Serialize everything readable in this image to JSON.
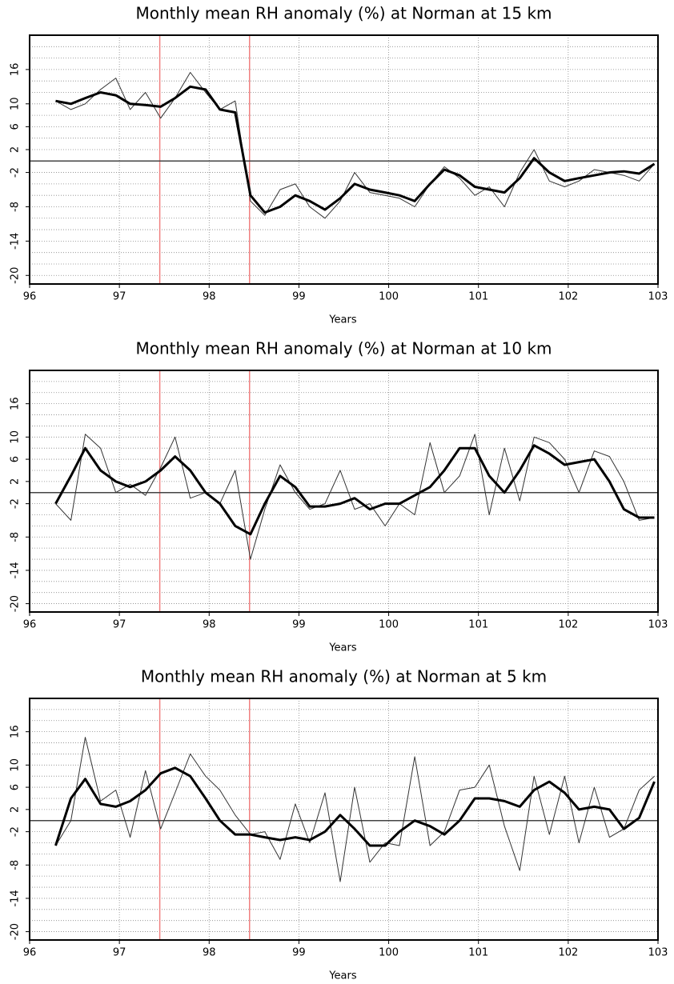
{
  "chart_data": [
    {
      "type": "line",
      "title": "Monthly mean RH anomaly (%) at Norman at 15 km",
      "xlabel": "Years",
      "x": [
        96.29,
        96.46,
        96.62,
        96.79,
        96.96,
        97.12,
        97.29,
        97.46,
        97.62,
        97.79,
        97.96,
        98.12,
        98.29,
        98.46,
        98.62,
        98.79,
        98.96,
        99.12,
        99.29,
        99.46,
        99.62,
        99.79,
        99.96,
        100.12,
        100.29,
        100.46,
        100.62,
        100.79,
        100.96,
        101.12,
        101.29,
        101.46,
        101.62,
        101.79,
        101.96,
        102.12,
        102.29,
        102.46,
        102.62,
        102.79,
        102.96
      ],
      "series": [
        {
          "color": "#333333",
          "values": [
            10.5,
            9,
            10,
            12.5,
            14.5,
            9,
            12,
            7.5,
            11,
            15.5,
            12,
            9,
            10.5,
            -7,
            -9.5,
            -5,
            -4,
            -8,
            -10,
            -7,
            -2,
            -5.5,
            -6,
            -6.5,
            -8,
            -4,
            -1,
            -3,
            -6,
            -4.5,
            -8,
            -2,
            2,
            -3.5,
            -4.5,
            -3.5,
            -1.5,
            -2,
            -2.5,
            -3.5,
            -0.5
          ]
        },
        {
          "color": "#000000",
          "values": [
            10.5,
            10,
            11,
            12,
            11.5,
            10,
            9.8,
            9.5,
            11,
            13,
            12.5,
            9,
            8.5,
            -6,
            -9,
            -8,
            -6,
            -7,
            -8.5,
            -6.5,
            -4,
            -5,
            -5.5,
            -6,
            -7,
            -4,
            -1.5,
            -2.5,
            -4.5,
            -5,
            -5.5,
            -3,
            0.5,
            -2,
            -3.5,
            -3,
            -2.5,
            -2,
            -1.8,
            -2.2,
            -0.5
          ]
        }
      ],
      "xlim": [
        96,
        103
      ],
      "xticks": [
        96,
        97,
        98,
        99,
        100,
        101,
        102,
        103
      ],
      "ylim": [
        -21.5,
        22
      ],
      "yticks": [
        -20,
        -14,
        -8,
        -2,
        2,
        6,
        10,
        16
      ],
      "ygrid": [
        -20,
        -18,
        -16,
        -14,
        -12,
        -10,
        -8,
        -6,
        -4,
        -2,
        2,
        4,
        6,
        8,
        10,
        12,
        14,
        16,
        18,
        20
      ],
      "grid": true,
      "vlines": [
        97.45,
        98.45
      ],
      "vline_color": "#f08080"
    },
    {
      "type": "line",
      "title": "Monthly mean RH anomaly (%) at Norman at 10 km",
      "xlabel": "Years",
      "x": [
        96.29,
        96.46,
        96.62,
        96.79,
        96.96,
        97.12,
        97.29,
        97.46,
        97.62,
        97.79,
        97.96,
        98.12,
        98.29,
        98.46,
        98.62,
        98.79,
        98.96,
        99.12,
        99.29,
        99.46,
        99.62,
        99.79,
        99.96,
        100.12,
        100.29,
        100.46,
        100.62,
        100.79,
        100.96,
        101.12,
        101.29,
        101.46,
        101.62,
        101.79,
        101.96,
        102.12,
        102.29,
        102.46,
        102.62,
        102.79,
        102.96
      ],
      "series": [
        {
          "color": "#333333",
          "values": [
            -2,
            -5,
            10.5,
            8,
            0,
            1.5,
            -0.5,
            4.5,
            10,
            -1,
            0,
            -2,
            4,
            -12,
            -3,
            5,
            0,
            -3,
            -2,
            4,
            -3,
            -2,
            -6,
            -2,
            -4,
            9,
            0,
            3,
            10.5,
            -4,
            8,
            -1.5,
            10,
            9,
            6,
            0,
            7.5,
            6.5,
            2,
            -5,
            -4.5
          ]
        },
        {
          "color": "#000000",
          "values": [
            -2,
            3,
            8,
            4,
            2,
            1,
            2,
            4,
            6.5,
            4,
            0,
            -2,
            -6,
            -7.5,
            -2,
            3,
            1,
            -2.5,
            -2.5,
            -2,
            -1,
            -3,
            -2,
            -2,
            -0.5,
            1,
            4,
            8,
            8,
            3,
            0,
            4,
            8.5,
            7,
            5,
            5.5,
            6,
            2,
            -3,
            -4.5,
            -4.5
          ]
        }
      ],
      "xlim": [
        96,
        103
      ],
      "xticks": [
        96,
        97,
        98,
        99,
        100,
        101,
        102,
        103
      ],
      "ylim": [
        -21.5,
        22
      ],
      "yticks": [
        -20,
        -14,
        -8,
        -2,
        2,
        6,
        10,
        16
      ],
      "ygrid": [
        -20,
        -18,
        -16,
        -14,
        -12,
        -10,
        -8,
        -6,
        -4,
        -2,
        2,
        4,
        6,
        8,
        10,
        12,
        14,
        16,
        18,
        20
      ],
      "grid": true,
      "vlines": [
        97.45,
        98.45
      ],
      "vline_color": "#f08080"
    },
    {
      "type": "line",
      "title": "Monthly mean RH anomaly (%) at Norman at 5 km",
      "xlabel": "Years",
      "x": [
        96.29,
        96.46,
        96.62,
        96.79,
        96.96,
        97.12,
        97.29,
        97.46,
        97.62,
        97.79,
        97.96,
        98.12,
        98.29,
        98.46,
        98.62,
        98.79,
        98.96,
        99.12,
        99.29,
        99.46,
        99.62,
        99.79,
        99.96,
        100.12,
        100.29,
        100.46,
        100.62,
        100.79,
        100.96,
        101.12,
        101.29,
        101.46,
        101.62,
        101.79,
        101.96,
        102.12,
        102.29,
        102.46,
        102.62,
        102.79,
        102.96
      ],
      "series": [
        {
          "color": "#333333",
          "values": [
            -4.5,
            0,
            15,
            3.5,
            5.5,
            -3,
            9,
            -1.5,
            5,
            12,
            8,
            5.5,
            1,
            -2.5,
            -2,
            -7,
            3,
            -4,
            5,
            -11,
            6,
            -7.5,
            -4,
            -4.5,
            11.5,
            -4.5,
            -2,
            5.5,
            6,
            10,
            -1,
            -9,
            8,
            -2.5,
            8,
            -4,
            6,
            -3,
            -1.5,
            5.5,
            8
          ]
        },
        {
          "color": "#000000",
          "values": [
            -4.5,
            4,
            7.5,
            3,
            2.5,
            3.5,
            5.5,
            8.5,
            9.5,
            8,
            4,
            0,
            -2.5,
            -2.5,
            -3,
            -3.5,
            -3,
            -3.5,
            -2,
            1,
            -1.5,
            -4.5,
            -4.5,
            -2,
            0,
            -1,
            -2.5,
            0,
            4,
            4,
            3.5,
            2.5,
            5.5,
            7,
            5,
            2,
            2.5,
            2,
            -1.5,
            0.5,
            7
          ]
        }
      ],
      "xlim": [
        96,
        103
      ],
      "xticks": [
        96,
        97,
        98,
        99,
        100,
        101,
        102,
        103
      ],
      "ylim": [
        -21.5,
        22
      ],
      "yticks": [
        -20,
        -14,
        -8,
        -2,
        2,
        6,
        10,
        16
      ],
      "ygrid": [
        -20,
        -18,
        -16,
        -14,
        -12,
        -10,
        -8,
        -6,
        -4,
        -2,
        2,
        4,
        6,
        8,
        10,
        12,
        14,
        16,
        18,
        20
      ],
      "grid": true,
      "vlines": [
        97.45,
        98.45
      ],
      "vline_color": "#f08080"
    }
  ]
}
